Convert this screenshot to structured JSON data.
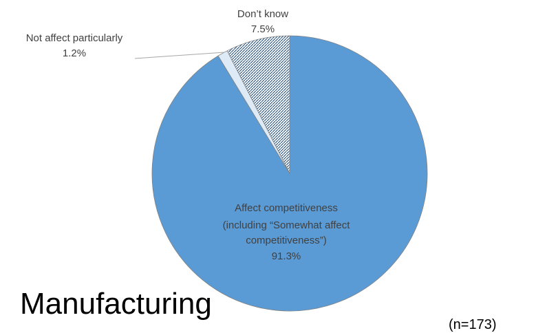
{
  "chart_data": {
    "type": "pie",
    "title": "",
    "start_angle_deg": 0,
    "direction": "clockwise",
    "slices": [
      {
        "label_lines": [
          "Affect competitiveness",
          "(including “Somewhat affect",
          "competitiveness”)"
        ],
        "value_label": "91.3%",
        "value": 91.3,
        "color": "#5b9bd5",
        "pattern": "solid"
      },
      {
        "label_lines": [
          "Not affect particularly"
        ],
        "value_label": "1.2%",
        "value": 1.2,
        "color": "#deebf7",
        "pattern": "solid"
      },
      {
        "label_lines": [
          "Don’t know"
        ],
        "value_label": "7.5%",
        "value": 7.5,
        "color": "#1f4e79",
        "pattern": "diagonal-dots"
      }
    ]
  },
  "category_label": "Manufacturing",
  "sample_note": "(n=173)"
}
